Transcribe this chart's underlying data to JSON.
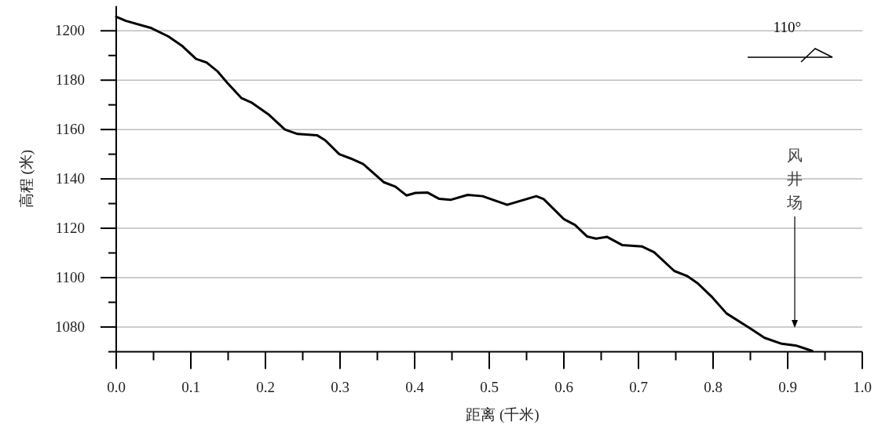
{
  "chart_data": {
    "type": "line",
    "xlabel": "距离 (千米)",
    "ylabel": "高程 (米)",
    "x": [
      0,
      0.013,
      0.047,
      0.07,
      0.089,
      0.107,
      0.121,
      0.136,
      0.149,
      0.168,
      0.181,
      0.205,
      0.226,
      0.243,
      0.269,
      0.28,
      0.299,
      0.314,
      0.331,
      0.359,
      0.374,
      0.389,
      0.401,
      0.417,
      0.433,
      0.448,
      0.471,
      0.491,
      0.524,
      0.563,
      0.573,
      0.6,
      0.615,
      0.631,
      0.643,
      0.658,
      0.678,
      0.705,
      0.721,
      0.748,
      0.765,
      0.779,
      0.799,
      0.818,
      0.849,
      0.869,
      0.892,
      0.912,
      0.933
    ],
    "values": [
      1205.7,
      1204.0,
      1201.1,
      1197.7,
      1193.7,
      1188.6,
      1187.2,
      1183.5,
      1178.9,
      1172.7,
      1171.0,
      1165.9,
      1160.0,
      1158.2,
      1157.7,
      1155.7,
      1150.0,
      1148.3,
      1146.0,
      1138.6,
      1136.9,
      1133.3,
      1134.3,
      1134.5,
      1131.9,
      1131.5,
      1133.5,
      1133.0,
      1129.5,
      1133.0,
      1131.8,
      1123.7,
      1121.3,
      1116.7,
      1115.8,
      1116.5,
      1113.2,
      1112.6,
      1110.3,
      1102.7,
      1100.7,
      1097.8,
      1092.0,
      1085.5,
      1079.6,
      1075.6,
      1073.2,
      1072.4,
      1070.3
    ],
    "color": "#000000",
    "xlim": [
      0,
      1
    ],
    "xticks": [
      {
        "value": 0,
        "label": "0.0"
      },
      0.1,
      0.2,
      0.3,
      0.4,
      0.5,
      0.6,
      0.7,
      0.8,
      0.9,
      {
        "value": 1,
        "label": "1.0"
      }
    ],
    "ylim": [
      1070,
      1210
    ],
    "yticks": [
      1080,
      1100,
      1120,
      1140,
      1160,
      1180,
      1200
    ],
    "grid": "y",
    "annotations": [
      "110°",
      "风井场"
    ]
  }
}
